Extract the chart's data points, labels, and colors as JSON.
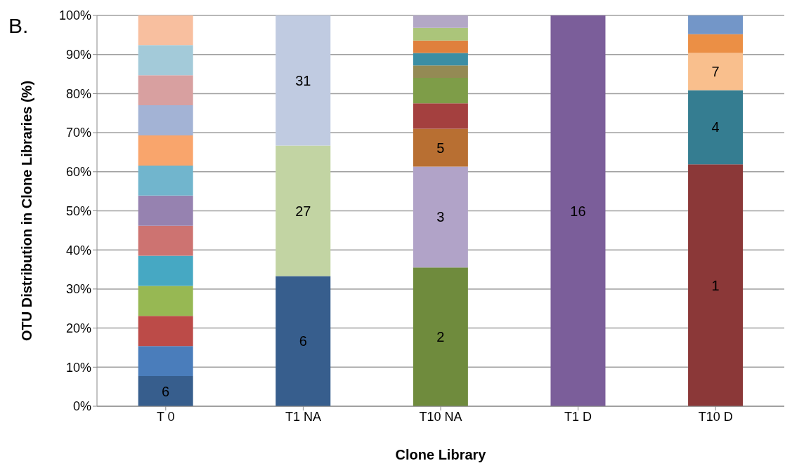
{
  "chart_data": {
    "type": "bar",
    "stacked": true,
    "grid": "y",
    "annotations": [
      "B."
    ],
    "xlabel": "Clone Library",
    "ylabel": "OTU Distribution in Clone Libraries (%)",
    "categories": [
      "T 0",
      "T1 NA",
      "T10 NA",
      "T1 D",
      "T10 D"
    ],
    "ylim": [
      0,
      100
    ],
    "yticks": [
      {
        "value": 0,
        "label": "0%"
      },
      {
        "value": 10,
        "label": "10%"
      },
      {
        "value": 20,
        "label": "20%"
      },
      {
        "value": 30,
        "label": "30%"
      },
      {
        "value": 40,
        "label": "40%"
      },
      {
        "value": 50,
        "label": "50%"
      },
      {
        "value": 60,
        "label": "60%"
      },
      {
        "value": 70,
        "label": "70%"
      },
      {
        "value": 80,
        "label": "80%"
      },
      {
        "value": 90,
        "label": "90%"
      },
      {
        "value": 100,
        "label": "100%"
      }
    ],
    "series": [
      {
        "name": "6",
        "color": "#375e8d",
        "values": [
          7.7,
          33.3,
          null,
          null,
          null
        ]
      },
      {
        "name": "2",
        "color": "#6f8b3d",
        "values": [
          null,
          null,
          35.5,
          null,
          null
        ]
      },
      {
        "name": "16",
        "color": "#7b5e9a",
        "values": [
          null,
          null,
          null,
          100,
          null
        ]
      },
      {
        "name": "1",
        "color": "#8b3838",
        "values": [
          null,
          null,
          null,
          null,
          61.9
        ]
      },
      {
        "name": "27",
        "color": "#c2d4a3",
        "values": [
          null,
          33.4,
          null,
          null,
          null
        ]
      },
      {
        "name": "3",
        "color": "#b1a3c8",
        "values": [
          null,
          null,
          25.8,
          null,
          null
        ]
      },
      {
        "name": "4",
        "color": "#357d91",
        "values": [
          null,
          null,
          null,
          null,
          19.0
        ]
      },
      {
        "name": "31",
        "color": "#c0cbe1",
        "values": [
          null,
          33.3,
          null,
          null,
          null
        ]
      },
      {
        "name": "5",
        "color": "#b86f32",
        "values": [
          null,
          null,
          9.7,
          null,
          null
        ]
      },
      {
        "name": "7",
        "color": "#f9bf8d",
        "values": [
          null,
          null,
          null,
          null,
          9.5
        ]
      },
      {
        "values": [
          7.7,
          null,
          6.5,
          null,
          4.8
        ],
        "colors": [
          "#4a7dbb",
          null,
          "#a4403f",
          null,
          "#eb8f45"
        ]
      },
      {
        "values": [
          7.7,
          null,
          6.5,
          null,
          4.8
        ],
        "colors": [
          "#bc4b48",
          null,
          "#7e9d48",
          null,
          "#7396c8"
        ]
      },
      {
        "values": [
          7.7,
          null,
          3.2,
          null,
          null
        ],
        "colors": [
          "#97b853",
          null,
          "#948a54",
          null,
          null
        ]
      },
      {
        "values": [
          7.7,
          null,
          3.2,
          null,
          null
        ],
        "colors": [
          "#46a8c3",
          null,
          "#3b8ea4",
          null,
          null
        ]
      },
      {
        "values": [
          7.7,
          null,
          3.2,
          null,
          null
        ],
        "colors": [
          "#cd7371",
          null,
          "#e0803d",
          null,
          null
        ]
      },
      {
        "values": [
          7.7,
          null,
          3.2,
          null,
          null
        ],
        "colors": [
          "#9682b0",
          null,
          "#abc57a",
          null,
          null
        ]
      },
      {
        "values": [
          7.7,
          null,
          3.2,
          null,
          null
        ],
        "colors": [
          "#71b5cd",
          null,
          "#b3a8c6",
          null,
          null
        ]
      },
      {
        "color": "#f9a56c",
        "values": [
          7.7,
          null,
          null,
          null,
          null
        ]
      },
      {
        "color": "#a3b3d5",
        "values": [
          7.7,
          null,
          null,
          null,
          null
        ]
      },
      {
        "color": "#d8a0a0",
        "values": [
          7.7,
          null,
          null,
          null,
          null
        ]
      },
      {
        "color": "#a3cad9",
        "values": [
          7.7,
          null,
          null,
          null,
          null
        ]
      },
      {
        "color": "#f8bf9f",
        "values": [
          7.6,
          null,
          null,
          null,
          null
        ]
      }
    ]
  }
}
